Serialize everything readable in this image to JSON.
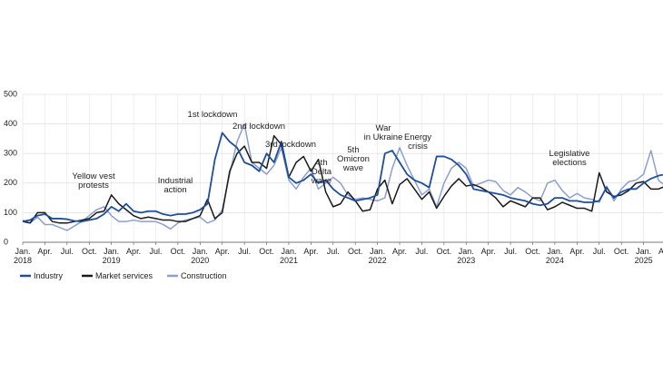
{
  "chart_data": {
    "type": "line",
    "categories": [
      "Jan.\n2018",
      null,
      null,
      "Apr.",
      null,
      null,
      "Jul.",
      null,
      null,
      "Oct.",
      null,
      null,
      "Jan.\n2019",
      null,
      null,
      "Apr.",
      null,
      null,
      "Jul.",
      null,
      null,
      "Oct.",
      null,
      null,
      "Jan.\n2020",
      null,
      null,
      "Apr.",
      null,
      null,
      "Jul.",
      null,
      null,
      "Oct.",
      null,
      null,
      "Jan.\n2021",
      null,
      null,
      "Apr.",
      null,
      null,
      "Jul.",
      null,
      null,
      "Oct.",
      null,
      null,
      "Jan.\n2022",
      null,
      null,
      "Apr.",
      null,
      null,
      "Jul.",
      null,
      null,
      "Oct.",
      null,
      null,
      "Jan.\n2023",
      null,
      null,
      "Apr.",
      null,
      null,
      "Jul.",
      null,
      null,
      "Oct.",
      null,
      null,
      "Jan.\n2024",
      null,
      null,
      "Apr.",
      null,
      null,
      "Jul.",
      null,
      null,
      "Oct.",
      null,
      null,
      "Jan.\n2025",
      null,
      null,
      "Apr."
    ],
    "series": [
      {
        "name": "Industry",
        "color": "#1f4e9c",
        "values": [
          70,
          75,
          90,
          95,
          80,
          80,
          78,
          72,
          70,
          75,
          80,
          95,
          120,
          105,
          130,
          105,
          100,
          105,
          105,
          95,
          90,
          95,
          95,
          100,
          110,
          130,
          280,
          370,
          340,
          320,
          270,
          260,
          240,
          300,
          270,
          340,
          220,
          200,
          210,
          230,
          200,
          210,
          180,
          160,
          150,
          140,
          145,
          150,
          160,
          300,
          310,
          270,
          230,
          210,
          200,
          185,
          290,
          290,
          280,
          260,
          230,
          180,
          175,
          170,
          165,
          160,
          150,
          145,
          140,
          130,
          125,
          130,
          150,
          150,
          140,
          140,
          135,
          135,
          140,
          185,
          150,
          170,
          180,
          180,
          200,
          215,
          225,
          230
        ]
      },
      {
        "name": "Market services",
        "color": "#1a1a1a",
        "values": [
          70,
          65,
          100,
          100,
          70,
          65,
          65,
          70,
          75,
          80,
          100,
          105,
          160,
          130,
          110,
          90,
          80,
          85,
          80,
          75,
          75,
          70,
          70,
          80,
          90,
          145,
          80,
          100,
          240,
          300,
          325,
          270,
          270,
          250,
          360,
          330,
          220,
          270,
          290,
          240,
          280,
          170,
          120,
          130,
          170,
          140,
          105,
          110,
          180,
          210,
          130,
          195,
          215,
          180,
          145,
          170,
          115,
          155,
          190,
          215,
          190,
          195,
          185,
          170,
          150,
          120,
          140,
          130,
          120,
          150,
          150,
          110,
          120,
          135,
          125,
          115,
          115,
          105,
          235,
          170,
          155,
          160,
          175,
          200,
          205,
          180,
          180,
          190
        ]
      },
      {
        "name": "Construction",
        "color": "#8c9fd0",
        "values": [
          75,
          65,
          85,
          60,
          60,
          50,
          40,
          55,
          70,
          90,
          110,
          120,
          90,
          70,
          70,
          75,
          70,
          70,
          70,
          60,
          45,
          65,
          75,
          80,
          85,
          65,
          75,
          110,
          230,
          340,
          400,
          270,
          250,
          230,
          260,
          320,
          210,
          180,
          220,
          250,
          180,
          200,
          220,
          200,
          160,
          145,
          150,
          145,
          140,
          150,
          250,
          320,
          260,
          210,
          160,
          180,
          120,
          200,
          250,
          270,
          250,
          190,
          200,
          210,
          205,
          175,
          160,
          185,
          170,
          150,
          140,
          200,
          210,
          175,
          150,
          165,
          150,
          145,
          135,
          190,
          140,
          180,
          205,
          210,
          230,
          310,
          210,
          190
        ]
      }
    ],
    "ylim": [
      0,
      500
    ],
    "yticks": [
      0,
      100,
      200,
      300,
      400,
      500
    ],
    "grid": true,
    "annotations": [
      "Yellow vest\nprotests",
      "Industrial\naction",
      "1st lockdown",
      "2nd lockdown",
      "3rd lockdown",
      "4th\nDelta\nwave",
      "5th\nOmicron\nwave",
      "War\nin Ukraine",
      "Energy\ncrisis",
      "Legislative\nelections"
    ],
    "legend": "bottom-left"
  }
}
